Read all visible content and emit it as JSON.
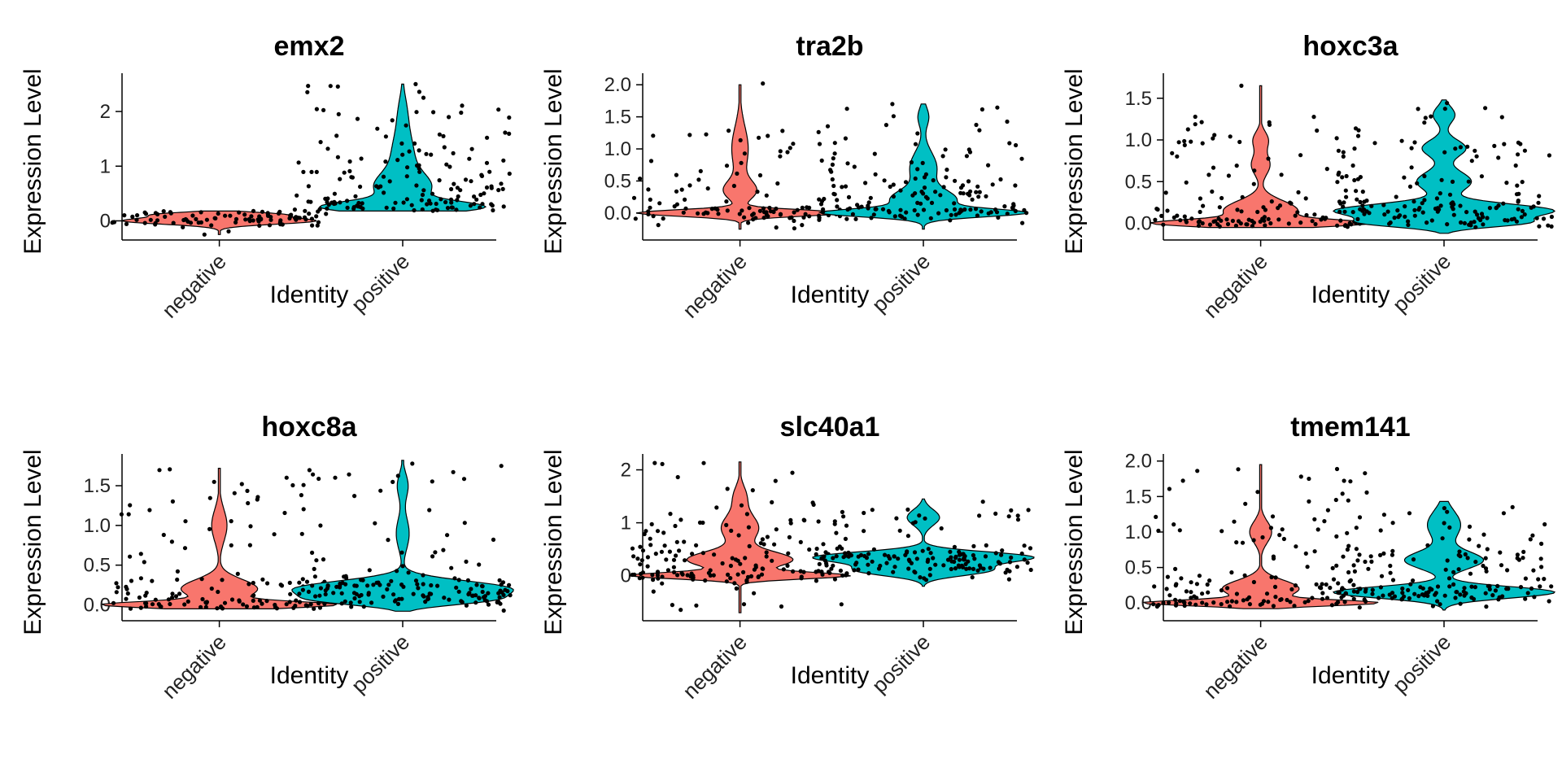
{
  "colors": {
    "negative": "#F8766D",
    "positive": "#00BFC4",
    "point": "#000000",
    "axis": "#000000",
    "outline": "#000000"
  },
  "chart_data": [
    {
      "type": "violin",
      "title": "emx2",
      "xlabel": "Identity",
      "ylabel": "Expression Level",
      "categories": [
        "negative",
        "positive"
      ],
      "yticks": [
        0,
        1,
        2
      ],
      "ylim": [
        -0.35,
        2.7
      ],
      "series": [
        {
          "name": "negative",
          "peaks": [
            [
              0.0,
              1.0
            ],
            [
              0.12,
              0.55
            ]
          ],
          "widths": [
            0.06,
            0.04
          ],
          "ymin": -0.25,
          "ymax": 0.18,
          "max_half_width": 0.7,
          "n_points": 90,
          "point_range": [
            -0.2,
            0.18
          ],
          "outliers": [
            -0.25
          ]
        },
        {
          "name": "positive",
          "peaks": [
            [
              0.25,
              1.0
            ],
            [
              0.6,
              0.35
            ],
            [
              1.2,
              0.15
            ],
            [
              2.0,
              0.05
            ]
          ],
          "widths": [
            0.1,
            0.25,
            0.4,
            0.3
          ],
          "ymin": 0.18,
          "ymax": 2.5,
          "max_half_width": 0.6,
          "n_points": 160,
          "point_range": [
            0.18,
            2.5
          ],
          "outliers": [
            2.5
          ]
        }
      ]
    },
    {
      "type": "violin",
      "title": "tra2b",
      "xlabel": "Identity",
      "ylabel": "Expression Level",
      "categories": [
        "negative",
        "positive"
      ],
      "yticks": [
        0.0,
        0.5,
        1.0,
        1.5,
        2.0
      ],
      "yticklabels": [
        "0.0",
        "0.5",
        "1.0",
        "1.5",
        "2.0"
      ],
      "ylim": [
        -0.42,
        2.18
      ],
      "series": [
        {
          "name": "negative",
          "peaks": [
            [
              0.0,
              1.0
            ],
            [
              0.35,
              0.15
            ],
            [
              1.0,
              0.08
            ]
          ],
          "widths": [
            0.05,
            0.15,
            0.35
          ],
          "ymin": -0.25,
          "ymax": 2.0,
          "max_half_width": 0.75,
          "n_points": 110,
          "point_range": [
            -0.25,
            1.45
          ],
          "outliers": [
            2.02
          ]
        },
        {
          "name": "positive",
          "peaks": [
            [
              0.0,
              1.0
            ],
            [
              0.2,
              0.35
            ],
            [
              0.7,
              0.15
            ],
            [
              1.5,
              0.06
            ]
          ],
          "widths": [
            0.06,
            0.15,
            0.25,
            0.15
          ],
          "ymin": -0.25,
          "ymax": 1.7,
          "max_half_width": 0.75,
          "n_points": 150,
          "point_range": [
            -0.25,
            1.7
          ],
          "outliers": []
        }
      ]
    },
    {
      "type": "violin",
      "title": "hoxc3a",
      "xlabel": "Identity",
      "ylabel": "Expression Level",
      "categories": [
        "negative",
        "positive"
      ],
      "yticks": [
        0.0,
        0.5,
        1.0,
        1.5
      ],
      "yticklabels": [
        "0.0",
        "0.5",
        "1.0",
        "1.5"
      ],
      "ylim": [
        -0.2,
        1.8
      ],
      "series": [
        {
          "name": "negative",
          "peaks": [
            [
              0.0,
              1.0
            ],
            [
              0.15,
              0.4
            ],
            [
              0.7,
              0.1
            ],
            [
              1.0,
              0.08
            ]
          ],
          "widths": [
            0.04,
            0.12,
            0.12,
            0.1
          ],
          "ymin": -0.05,
          "ymax": 1.65,
          "max_half_width": 0.8,
          "n_points": 130,
          "point_range": [
            -0.05,
            1.35
          ],
          "outliers": [
            1.65
          ]
        },
        {
          "name": "positive",
          "peaks": [
            [
              0.15,
              1.0
            ],
            [
              0.0,
              0.6
            ],
            [
              0.5,
              0.25
            ],
            [
              0.9,
              0.2
            ],
            [
              1.3,
              0.1
            ]
          ],
          "widths": [
            0.08,
            0.05,
            0.12,
            0.1,
            0.1
          ],
          "ymin": -0.12,
          "ymax": 1.48,
          "max_half_width": 0.8,
          "n_points": 160,
          "point_range": [
            -0.05,
            1.48
          ],
          "outliers": []
        }
      ]
    },
    {
      "type": "violin",
      "title": "hoxc8a",
      "xlabel": "Identity",
      "ylabel": "Expression Level",
      "categories": [
        "negative",
        "positive"
      ],
      "yticks": [
        0.0,
        0.5,
        1.0,
        1.5
      ],
      "yticklabels": [
        "0.0",
        "0.5",
        "1.0",
        "1.5"
      ],
      "ylim": [
        -0.2,
        1.9
      ],
      "series": [
        {
          "name": "negative",
          "peaks": [
            [
              0.0,
              1.0
            ],
            [
              0.2,
              0.35
            ],
            [
              1.0,
              0.07
            ]
          ],
          "widths": [
            0.04,
            0.12,
            0.2
          ],
          "ymin": -0.05,
          "ymax": 1.72,
          "max_half_width": 0.85,
          "n_points": 130,
          "point_range": [
            -0.05,
            1.72
          ],
          "outliers": []
        },
        {
          "name": "positive",
          "peaks": [
            [
              0.2,
              1.0
            ],
            [
              0.05,
              0.5
            ],
            [
              0.9,
              0.06
            ],
            [
              1.5,
              0.05
            ]
          ],
          "widths": [
            0.1,
            0.06,
            0.2,
            0.15
          ],
          "ymin": -0.08,
          "ymax": 1.82,
          "max_half_width": 0.8,
          "n_points": 160,
          "point_range": [
            -0.08,
            1.82
          ],
          "outliers": []
        }
      ]
    },
    {
      "type": "violin",
      "title": "slc40a1",
      "xlabel": "Identity",
      "ylabel": "Expression Level",
      "categories": [
        "negative",
        "positive"
      ],
      "yticks": [
        0,
        1,
        2
      ],
      "ylim": [
        -0.85,
        2.3
      ],
      "series": [
        {
          "name": "negative",
          "peaks": [
            [
              0.0,
              1.0
            ],
            [
              0.3,
              0.5
            ],
            [
              0.9,
              0.18
            ],
            [
              1.5,
              0.06
            ]
          ],
          "widths": [
            0.06,
            0.15,
            0.25,
            0.2
          ],
          "ymin": -0.7,
          "ymax": 2.15,
          "max_half_width": 0.8,
          "n_points": 170,
          "point_range": [
            -0.7,
            2.15
          ],
          "outliers": []
        },
        {
          "name": "positive",
          "peaks": [
            [
              0.35,
              1.0
            ],
            [
              0.1,
              0.6
            ],
            [
              1.1,
              0.15
            ]
          ],
          "widths": [
            0.1,
            0.1,
            0.15
          ],
          "ymin": -0.2,
          "ymax": 1.45,
          "max_half_width": 0.8,
          "n_points": 150,
          "point_range": [
            -0.1,
            1.4
          ],
          "outliers": []
        }
      ]
    },
    {
      "type": "violin",
      "title": "tmem141",
      "xlabel": "Identity",
      "ylabel": "Expression Level",
      "categories": [
        "negative",
        "positive"
      ],
      "yticks": [
        0.0,
        0.5,
        1.0,
        1.5,
        2.0
      ],
      "yticklabels": [
        "0.0",
        "0.5",
        "1.0",
        "1.5",
        "2.0"
      ],
      "ylim": [
        -0.25,
        2.1
      ],
      "series": [
        {
          "name": "negative",
          "peaks": [
            [
              0.0,
              1.0
            ],
            [
              0.2,
              0.35
            ],
            [
              1.0,
              0.1
            ]
          ],
          "widths": [
            0.04,
            0.12,
            0.15
          ],
          "ymin": -0.08,
          "ymax": 1.95,
          "max_half_width": 0.85,
          "n_points": 150,
          "point_range": [
            -0.08,
            1.95
          ],
          "outliers": []
        },
        {
          "name": "positive",
          "peaks": [
            [
              0.15,
              1.0
            ],
            [
              0.6,
              0.35
            ],
            [
              1.1,
              0.15
            ]
          ],
          "widths": [
            0.08,
            0.12,
            0.2
          ],
          "ymin": -0.1,
          "ymax": 1.43,
          "max_half_width": 0.8,
          "n_points": 160,
          "point_range": [
            -0.1,
            1.43
          ],
          "outliers": []
        }
      ]
    }
  ]
}
